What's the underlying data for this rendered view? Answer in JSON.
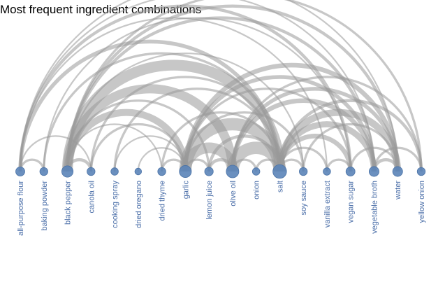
{
  "chart_data": {
    "type": "arc",
    "title": "Most frequent ingredient combinations",
    "colors": {
      "node": "#5b84b8",
      "node_stroke": "#4a72a6",
      "arc": "#999999",
      "label": "#4a6ea8"
    },
    "nodes": [
      {
        "name": "all-purpose flour",
        "weight": 3
      },
      {
        "name": "baking powder",
        "weight": 2
      },
      {
        "name": "black pepper",
        "weight": 6
      },
      {
        "name": "canola oil",
        "weight": 2
      },
      {
        "name": "cooking spray",
        "weight": 1.5
      },
      {
        "name": "dried oregano",
        "weight": 1
      },
      {
        "name": "dried thyme",
        "weight": 2
      },
      {
        "name": "garlic",
        "weight": 7
      },
      {
        "name": "lemon juice",
        "weight": 2.5
      },
      {
        "name": "olive oil",
        "weight": 8
      },
      {
        "name": "onion",
        "weight": 1.5
      },
      {
        "name": "salt",
        "weight": 10
      },
      {
        "name": "soy sauce",
        "weight": 2
      },
      {
        "name": "vanilla extract",
        "weight": 1.5
      },
      {
        "name": "vegan sugar",
        "weight": 3
      },
      {
        "name": "vegetable broth",
        "weight": 4
      },
      {
        "name": "water",
        "weight": 4
      },
      {
        "name": "yellow onion",
        "weight": 2
      }
    ],
    "links": [
      {
        "source": "all-purpose flour",
        "target": "baking powder",
        "value": 3
      },
      {
        "source": "all-purpose flour",
        "target": "canola oil",
        "value": 2
      },
      {
        "source": "all-purpose flour",
        "target": "salt",
        "value": 5
      },
      {
        "source": "all-purpose flour",
        "target": "vegan sugar",
        "value": 4
      },
      {
        "source": "all-purpose flour",
        "target": "vegetable broth",
        "value": 2
      },
      {
        "source": "all-purpose flour",
        "target": "water",
        "value": 2
      },
      {
        "source": "all-purpose flour",
        "target": "vanilla extract",
        "value": 2
      },
      {
        "source": "baking powder",
        "target": "salt",
        "value": 3
      },
      {
        "source": "baking powder",
        "target": "vegan sugar",
        "value": 2
      },
      {
        "source": "black pepper",
        "target": "canola oil",
        "value": 4
      },
      {
        "source": "black pepper",
        "target": "dried thyme",
        "value": 2
      },
      {
        "source": "black pepper",
        "target": "garlic",
        "value": 9
      },
      {
        "source": "black pepper",
        "target": "olive oil",
        "value": 12
      },
      {
        "source": "black pepper",
        "target": "salt",
        "value": 14
      },
      {
        "source": "black pepper",
        "target": "vegetable broth",
        "value": 4
      },
      {
        "source": "black pepper",
        "target": "water",
        "value": 4
      },
      {
        "source": "black pepper",
        "target": "yellow onion",
        "value": 3
      },
      {
        "source": "black pepper",
        "target": "lemon juice",
        "value": 3
      },
      {
        "source": "black pepper",
        "target": "soy sauce",
        "value": 2
      },
      {
        "source": "canola oil",
        "target": "garlic",
        "value": 3
      },
      {
        "source": "canola oil",
        "target": "salt",
        "value": 3
      },
      {
        "source": "cooking spray",
        "target": "salt",
        "value": 3
      },
      {
        "source": "cooking spray",
        "target": "garlic",
        "value": 2
      },
      {
        "source": "dried oregano",
        "target": "garlic",
        "value": 2
      },
      {
        "source": "dried thyme",
        "target": "garlic",
        "value": 3
      },
      {
        "source": "dried thyme",
        "target": "salt",
        "value": 3
      },
      {
        "source": "garlic",
        "target": "lemon juice",
        "value": 3
      },
      {
        "source": "garlic",
        "target": "olive oil",
        "value": 14
      },
      {
        "source": "garlic",
        "target": "salt",
        "value": 16
      },
      {
        "source": "garlic",
        "target": "soy sauce",
        "value": 3
      },
      {
        "source": "garlic",
        "target": "vegan sugar",
        "value": 3
      },
      {
        "source": "garlic",
        "target": "vegetable broth",
        "value": 5
      },
      {
        "source": "garlic",
        "target": "water",
        "value": 6
      },
      {
        "source": "lemon juice",
        "target": "olive oil",
        "value": 4
      },
      {
        "source": "lemon juice",
        "target": "salt",
        "value": 4
      },
      {
        "source": "olive oil",
        "target": "onion",
        "value": 3
      },
      {
        "source": "olive oil",
        "target": "salt",
        "value": 16
      },
      {
        "source": "olive oil",
        "target": "vegetable broth",
        "value": 6
      },
      {
        "source": "olive oil",
        "target": "water",
        "value": 5
      },
      {
        "source": "olive oil",
        "target": "yellow onion",
        "value": 3
      },
      {
        "source": "onion",
        "target": "salt",
        "value": 3
      },
      {
        "source": "salt",
        "target": "soy sauce",
        "value": 3
      },
      {
        "source": "salt",
        "target": "vanilla extract",
        "value": 3
      },
      {
        "source": "salt",
        "target": "vegan sugar",
        "value": 6
      },
      {
        "source": "salt",
        "target": "vegetable broth",
        "value": 8
      },
      {
        "source": "salt",
        "target": "water",
        "value": 9
      },
      {
        "source": "salt",
        "target": "yellow onion",
        "value": 4
      },
      {
        "source": "soy sauce",
        "target": "water",
        "value": 3
      },
      {
        "source": "vanilla extract",
        "target": "vegan sugar",
        "value": 3
      },
      {
        "source": "vegan sugar",
        "target": "water",
        "value": 3
      },
      {
        "source": "vegetable broth",
        "target": "water",
        "value": 4
      },
      {
        "source": "vegetable broth",
        "target": "yellow onion",
        "value": 3
      }
    ]
  }
}
